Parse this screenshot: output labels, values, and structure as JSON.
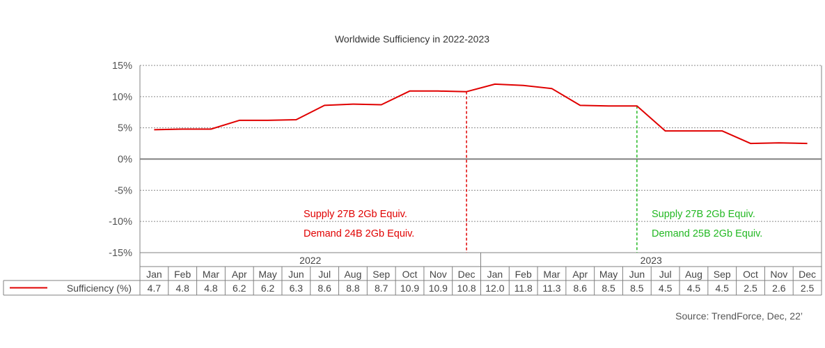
{
  "chart_data": {
    "type": "line",
    "title": "Worldwide Sufficiency in 2022-2023",
    "source": "Source: TrendForce, Dec, 22’",
    "xlabel": "",
    "ylabel": "",
    "ylim": [
      -15,
      15
    ],
    "yticks": [
      "15%",
      "10%",
      "5%",
      "0%",
      "-5%",
      "-10%",
      "-15%"
    ],
    "ytick_values": [
      15,
      10,
      5,
      0,
      -5,
      -10,
      -15
    ],
    "years": [
      "2022",
      "2023"
    ],
    "categories": [
      "Jan",
      "Feb",
      "Mar",
      "Apr",
      "May",
      "Jun",
      "Jul",
      "Aug",
      "Sep",
      "Oct",
      "Nov",
      "Dec",
      "Jan",
      "Feb",
      "Mar",
      "Apr",
      "May",
      "Jun",
      "Jul",
      "Aug",
      "Sep",
      "Oct",
      "Nov",
      "Dec"
    ],
    "series": [
      {
        "name": "Sufficiency (%)",
        "color": "#e00000",
        "values": [
          4.7,
          4.8,
          4.8,
          6.2,
          6.2,
          6.3,
          8.6,
          8.8,
          8.7,
          10.9,
          10.9,
          10.8,
          12.0,
          11.8,
          11.3,
          8.6,
          8.5,
          8.5,
          4.5,
          4.5,
          4.5,
          2.5,
          2.6,
          2.5
        ],
        "value_labels": [
          "4.7",
          "4.8",
          "4.8",
          "6.2",
          "6.2",
          "6.3",
          "8.6",
          "8.8",
          "8.7",
          "10.9",
          "10.9",
          "10.8",
          "12.0",
          "11.8",
          "11.3",
          "8.6",
          "8.5",
          "8.5",
          "4.5",
          "4.5",
          "4.5",
          "2.5",
          "2.6",
          "2.5"
        ]
      }
    ],
    "annotations": [
      {
        "color": "#e00000",
        "line1": "Supply 27B 2Gb Equiv.",
        "line2": "Demand 24B 2Gb Equiv."
      },
      {
        "color": "#22b822",
        "line1": "Supply 27B 2Gb Equiv.",
        "line2": "Demand 25B 2Gb Equiv."
      }
    ],
    "grid": true,
    "legend": "bottom-left table"
  }
}
